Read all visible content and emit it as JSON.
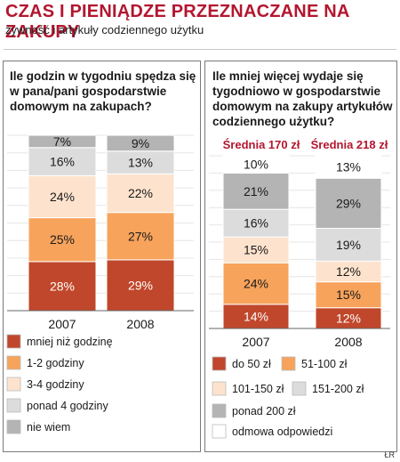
{
  "header": {
    "title": "CZAS I PIENIĄDZE PRZEZNACZANE NA ZAKUPY",
    "subtitle": "żywność i artykuły codziennego użytku"
  },
  "left": {
    "title_lines": [
      "Ile godzin w tygodniu spędza się",
      "w pana/pani gospodarstwie",
      "domowym na zakupach?"
    ]
  },
  "right": {
    "title_lines": [
      "Ile mniej więcej wydaje się",
      "tygodniowo w gospodarstwie",
      "domowym na zakupy artykułów",
      "codziennego użytku?"
    ],
    "averages": [
      "Średnia 170 zł",
      "Średnia 218 zł"
    ]
  },
  "colors": {
    "c1": "#c0472b",
    "c2": "#f7a35c",
    "c3": "#fde3cd",
    "c4": "#dcdcdc",
    "c5": "#b4b4b4",
    "c6": "#ffffff"
  },
  "chart_data": [
    {
      "type": "bar",
      "stacked": true,
      "categories": [
        "2007",
        "2008"
      ],
      "series": [
        {
          "name": "mniej niż godzinę",
          "color": "#c0472b",
          "values": [
            28,
            29
          ]
        },
        {
          "name": "1-2 godziny",
          "color": "#f7a35c",
          "values": [
            25,
            27
          ]
        },
        {
          "name": "3-4 godziny",
          "color": "#fde3cd",
          "values": [
            24,
            22
          ]
        },
        {
          "name": "ponad 4 godziny",
          "color": "#dcdcdc",
          "values": [
            16,
            13
          ]
        },
        {
          "name": "nie wiem",
          "color": "#b4b4b4",
          "values": [
            7,
            9
          ]
        }
      ],
      "value_labels": [
        [
          "28%",
          "25%",
          "24%",
          "16%",
          "7%"
        ],
        [
          "29%",
          "27%",
          "22%",
          "13%",
          "9%"
        ]
      ],
      "legend_labels": [
        "mniej niż godzinę",
        "1-2 godziny",
        "3-4 godziny",
        "ponad 4 godziny",
        "nie wiem"
      ]
    },
    {
      "type": "bar",
      "stacked": true,
      "categories": [
        "2007",
        "2008"
      ],
      "series": [
        {
          "name": "do 50 zł",
          "color": "#c0472b",
          "values": [
            14,
            12
          ]
        },
        {
          "name": "51-100 zł",
          "color": "#f7a35c",
          "values": [
            24,
            15
          ]
        },
        {
          "name": "101-150 zł",
          "color": "#fde3cd",
          "values": [
            15,
            12
          ]
        },
        {
          "name": "151-200 zł",
          "color": "#dcdcdc",
          "values": [
            16,
            19
          ]
        },
        {
          "name": "ponad 200 zł",
          "color": "#b4b4b4",
          "values": [
            21,
            29
          ]
        },
        {
          "name": "odmowa odpowiedzi",
          "color": "#ffffff",
          "values": [
            10,
            13
          ]
        }
      ],
      "value_labels": [
        [
          "14%",
          "24%",
          "15%",
          "16%",
          "21%",
          "10%"
        ],
        [
          "12%",
          "15%",
          "12%",
          "19%",
          "29%",
          "13%"
        ]
      ],
      "legend_labels": [
        "do 50 zł",
        "51-100 zł",
        "101-150 zł",
        "151-200 zł",
        "ponad 200 zł",
        "odmowa odpowiedzi"
      ]
    }
  ],
  "credit": "ŁR"
}
